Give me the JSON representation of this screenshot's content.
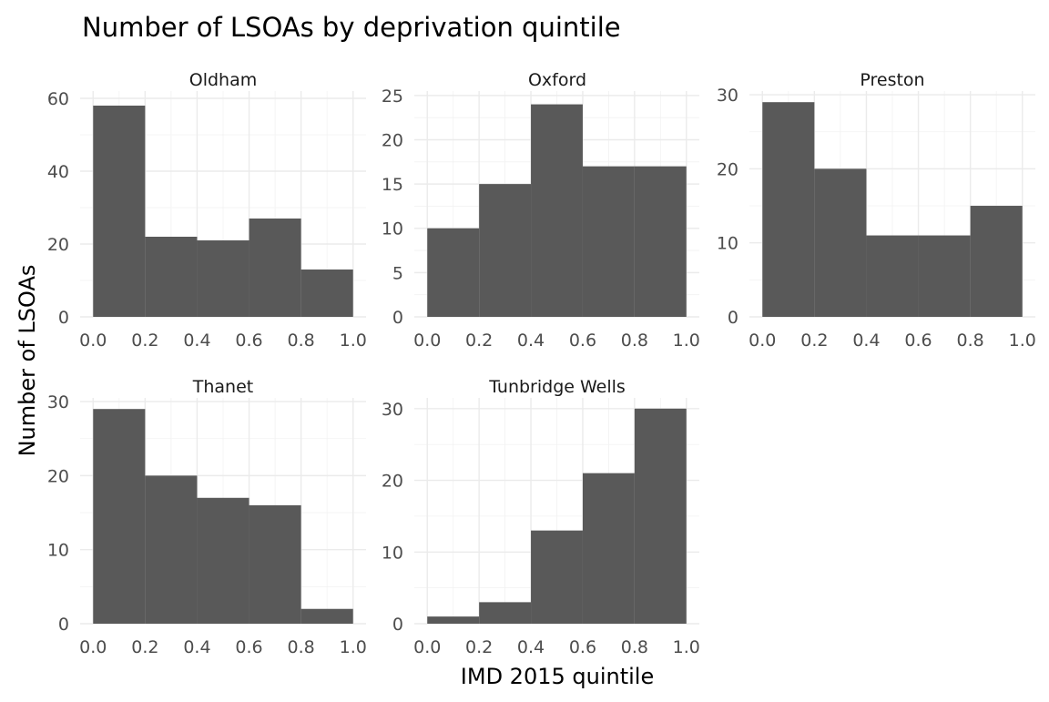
{
  "chart_data": {
    "type": "bar",
    "title": "Number of LSOAs by deprivation quintile",
    "xlabel": "IMD 2015 quintile",
    "ylabel": "Number of LSOAs",
    "bins": [
      [
        0.0,
        0.2
      ],
      [
        0.2,
        0.4
      ],
      [
        0.4,
        0.6
      ],
      [
        0.6,
        0.8
      ],
      [
        0.8,
        1.0
      ]
    ],
    "x_ticks": [
      "0.0",
      "0.2",
      "0.4",
      "0.6",
      "0.8",
      "1.0"
    ],
    "xlim": [
      -0.05,
      1.05
    ],
    "grid": true,
    "panels": [
      {
        "name": "Oldham",
        "values": [
          58,
          22,
          21,
          27,
          13
        ],
        "ylim": [
          0,
          62
        ],
        "y_ticks": [
          0,
          20,
          40,
          60
        ]
      },
      {
        "name": "Oxford",
        "values": [
          10,
          15,
          24,
          17,
          17
        ],
        "ylim": [
          0,
          25.5
        ],
        "y_ticks": [
          0,
          5,
          10,
          15,
          20,
          25
        ]
      },
      {
        "name": "Preston",
        "values": [
          29,
          20,
          11,
          11,
          15
        ],
        "ylim": [
          0,
          30.5
        ],
        "y_ticks": [
          0,
          10,
          20,
          30
        ]
      },
      {
        "name": "Thanet",
        "values": [
          29,
          20,
          17,
          16,
          2
        ],
        "ylim": [
          0,
          30.5
        ],
        "y_ticks": [
          0,
          10,
          20,
          30
        ]
      },
      {
        "name": "Tunbridge Wells",
        "values": [
          1,
          3,
          13,
          21,
          30
        ],
        "ylim": [
          0,
          31.5
        ],
        "y_ticks": [
          0,
          10,
          20,
          30
        ]
      }
    ]
  }
}
